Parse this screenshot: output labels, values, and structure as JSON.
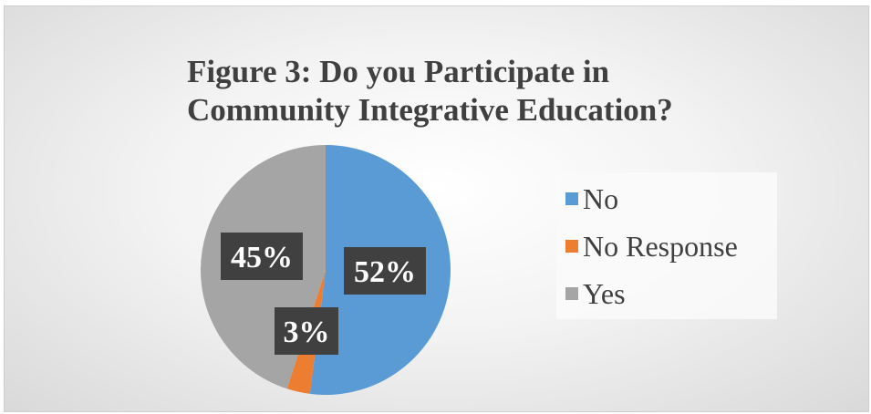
{
  "chart_data": {
    "type": "pie",
    "title": "Figure 3: Do you Participate in\nCommunity Integrative Education?",
    "slices": [
      {
        "label": "No",
        "value": 52,
        "display": "52%",
        "color": "#5b9bd5"
      },
      {
        "label": "No Response",
        "value": 3,
        "display": "3%",
        "color": "#ed7d31"
      },
      {
        "label": "Yes",
        "value": 45,
        "display": "45%",
        "color": "#a5a5a5"
      }
    ],
    "legend_position": "right",
    "data_label_background": "#404040"
  }
}
